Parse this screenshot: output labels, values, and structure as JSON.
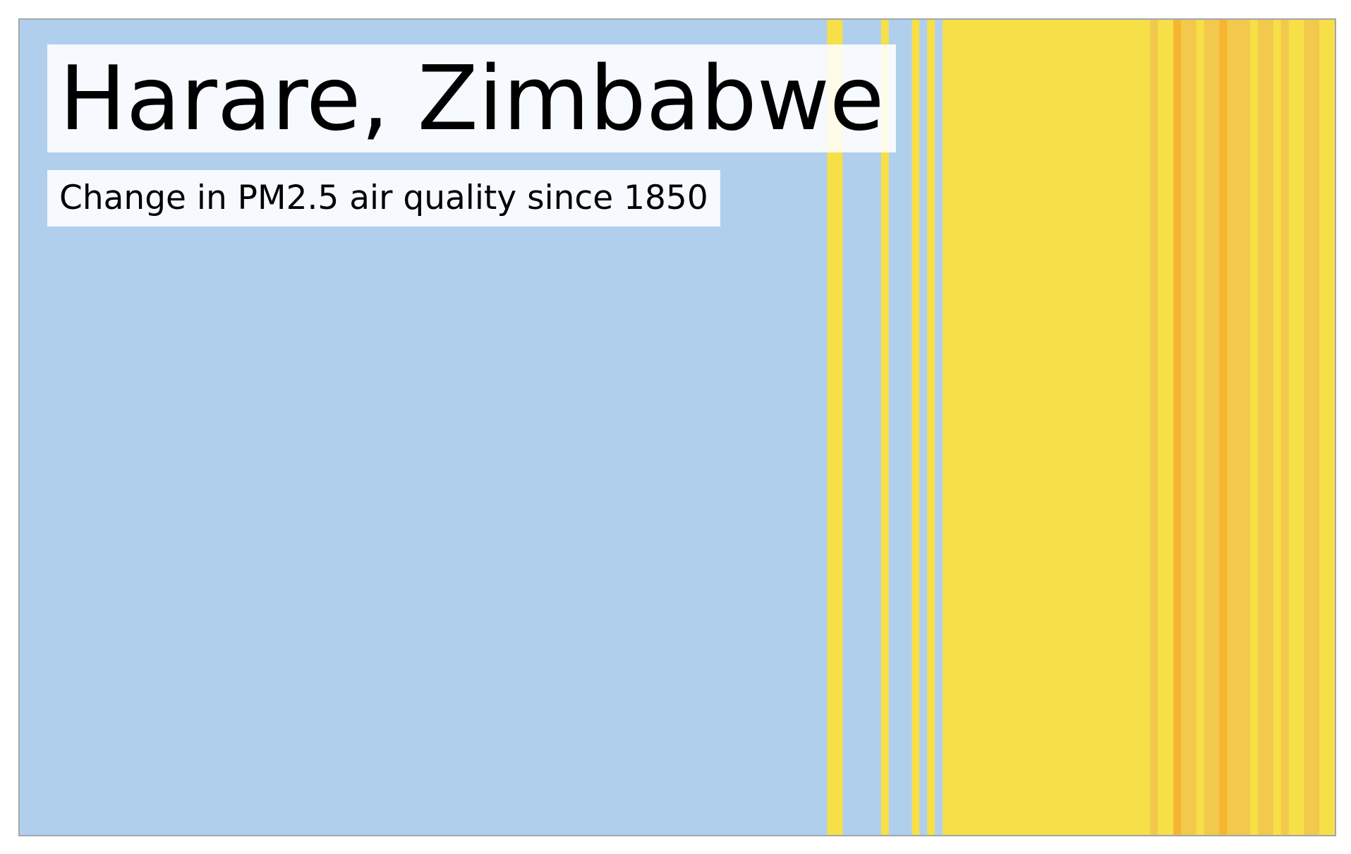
{
  "chart_data": {
    "type": "heatmap",
    "title": "Harare, Zimbabwe",
    "subtitle": "Change in PM2.5 air quality since 1850",
    "x_start": 1850,
    "x_end": 2021,
    "color_scale": {
      "low": "#b0cfed",
      "mid": "#f7df47",
      "mid_high": "#f2c94c",
      "high": "#f6b531"
    },
    "stripes": [
      {
        "start": 1850,
        "end": 1955,
        "color": "#b0cfed"
      },
      {
        "start": 1955,
        "end": 1957,
        "color": "#f7df47"
      },
      {
        "start": 1957,
        "end": 1962,
        "color": "#b0cfed"
      },
      {
        "start": 1962,
        "end": 1963,
        "color": "#f7df47"
      },
      {
        "start": 1963,
        "end": 1966,
        "color": "#b0cfed"
      },
      {
        "start": 1966,
        "end": 1967,
        "color": "#f7df47"
      },
      {
        "start": 1967,
        "end": 1968,
        "color": "#b0cfed"
      },
      {
        "start": 1968,
        "end": 1969,
        "color": "#f7df47"
      },
      {
        "start": 1969,
        "end": 1970,
        "color": "#b0cfed"
      },
      {
        "start": 1970,
        "end": 1997,
        "color": "#f7df47"
      },
      {
        "start": 1997,
        "end": 1998,
        "color": "#f2c94c"
      },
      {
        "start": 1998,
        "end": 2000,
        "color": "#f7df47"
      },
      {
        "start": 2000,
        "end": 2001,
        "color": "#f6b531"
      },
      {
        "start": 2001,
        "end": 2003,
        "color": "#f2c94c"
      },
      {
        "start": 2003,
        "end": 2004,
        "color": "#f7df47"
      },
      {
        "start": 2004,
        "end": 2006,
        "color": "#f2c94c"
      },
      {
        "start": 2006,
        "end": 2007,
        "color": "#f6b531"
      },
      {
        "start": 2007,
        "end": 2010,
        "color": "#f2c94c"
      },
      {
        "start": 2010,
        "end": 2011,
        "color": "#f7df47"
      },
      {
        "start": 2011,
        "end": 2013,
        "color": "#f2c94c"
      },
      {
        "start": 2013,
        "end": 2014,
        "color": "#f7df47"
      },
      {
        "start": 2014,
        "end": 2015,
        "color": "#f2c94c"
      },
      {
        "start": 2015,
        "end": 2017,
        "color": "#f7df47"
      },
      {
        "start": 2017,
        "end": 2019,
        "color": "#f2c94c"
      },
      {
        "start": 2019,
        "end": 2021,
        "color": "#f7df47"
      }
    ]
  }
}
